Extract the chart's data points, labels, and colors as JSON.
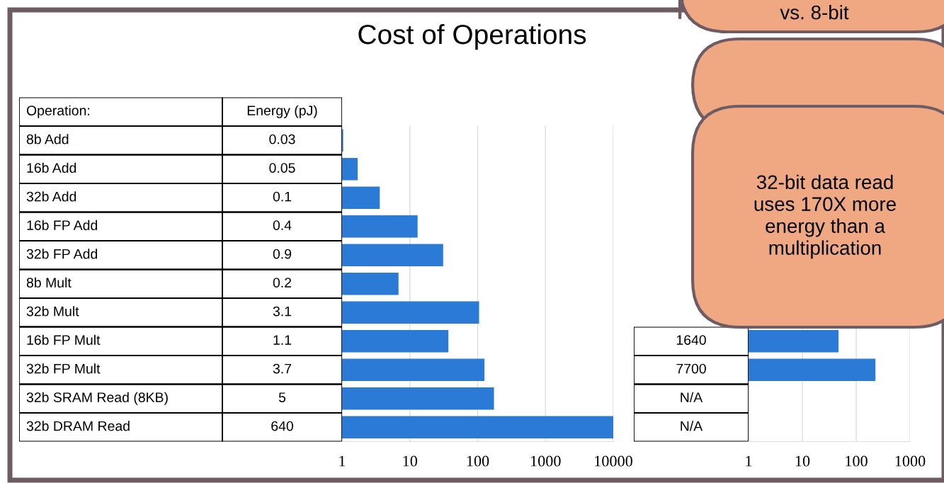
{
  "chart_data": [
    {
      "type": "other",
      "title": "Cost of Operations",
      "annotations": [
        "Operation:",
        "Energy (pJ)"
      ],
      "categories": [
        "8b Add",
        "16b Add",
        "32b Add",
        "16b FP Add",
        "32b FP Add",
        "8b Mult",
        "32b Mult",
        "16b FP Mult",
        "32b FP Mult",
        "32b SRAM Read (8KB)",
        "32b DRAM Read"
      ],
      "value_labels": [
        "0.03",
        "0.05",
        "0.1",
        "0.4",
        "0.9",
        "0.2",
        "3.1",
        "1.1",
        "3.7",
        "5",
        "640"
      ]
    },
    {
      "type": "bar",
      "orientation": "horizontal",
      "log": "x",
      "grid": "x",
      "color": "#2b7bd6",
      "categories": [
        null,
        null,
        null,
        null,
        null,
        null,
        null,
        null,
        null,
        null,
        null
      ],
      "values": [
        1.04,
        1.7,
        3.6,
        13,
        31,
        6.8,
        105,
        37,
        126,
        174,
        10000
      ],
      "xlim": [
        1,
        10000
      ],
      "xticks": [
        1,
        10,
        100,
        1000,
        10000
      ]
    },
    {
      "type": "other",
      "categories": [
        null,
        null,
        null,
        null
      ],
      "value_labels": [
        "1640",
        "7700",
        "N/A",
        "N/A"
      ]
    },
    {
      "type": "bar",
      "orientation": "horizontal",
      "log": "x",
      "grid": "x",
      "color": "#2b7bd6",
      "categories": [
        null,
        null,
        null,
        null
      ],
      "values": [
        47,
        228,
        null,
        null
      ],
      "xlim": [
        1,
        1000
      ],
      "xticks": [
        1,
        10,
        100,
        1000
      ]
    },
    {
      "type": "other",
      "annotations": [
        "vs. 8-bit",
        "32-bit data read\nuses 170X more\nenergy than a\nmultiplication"
      ]
    }
  ]
}
